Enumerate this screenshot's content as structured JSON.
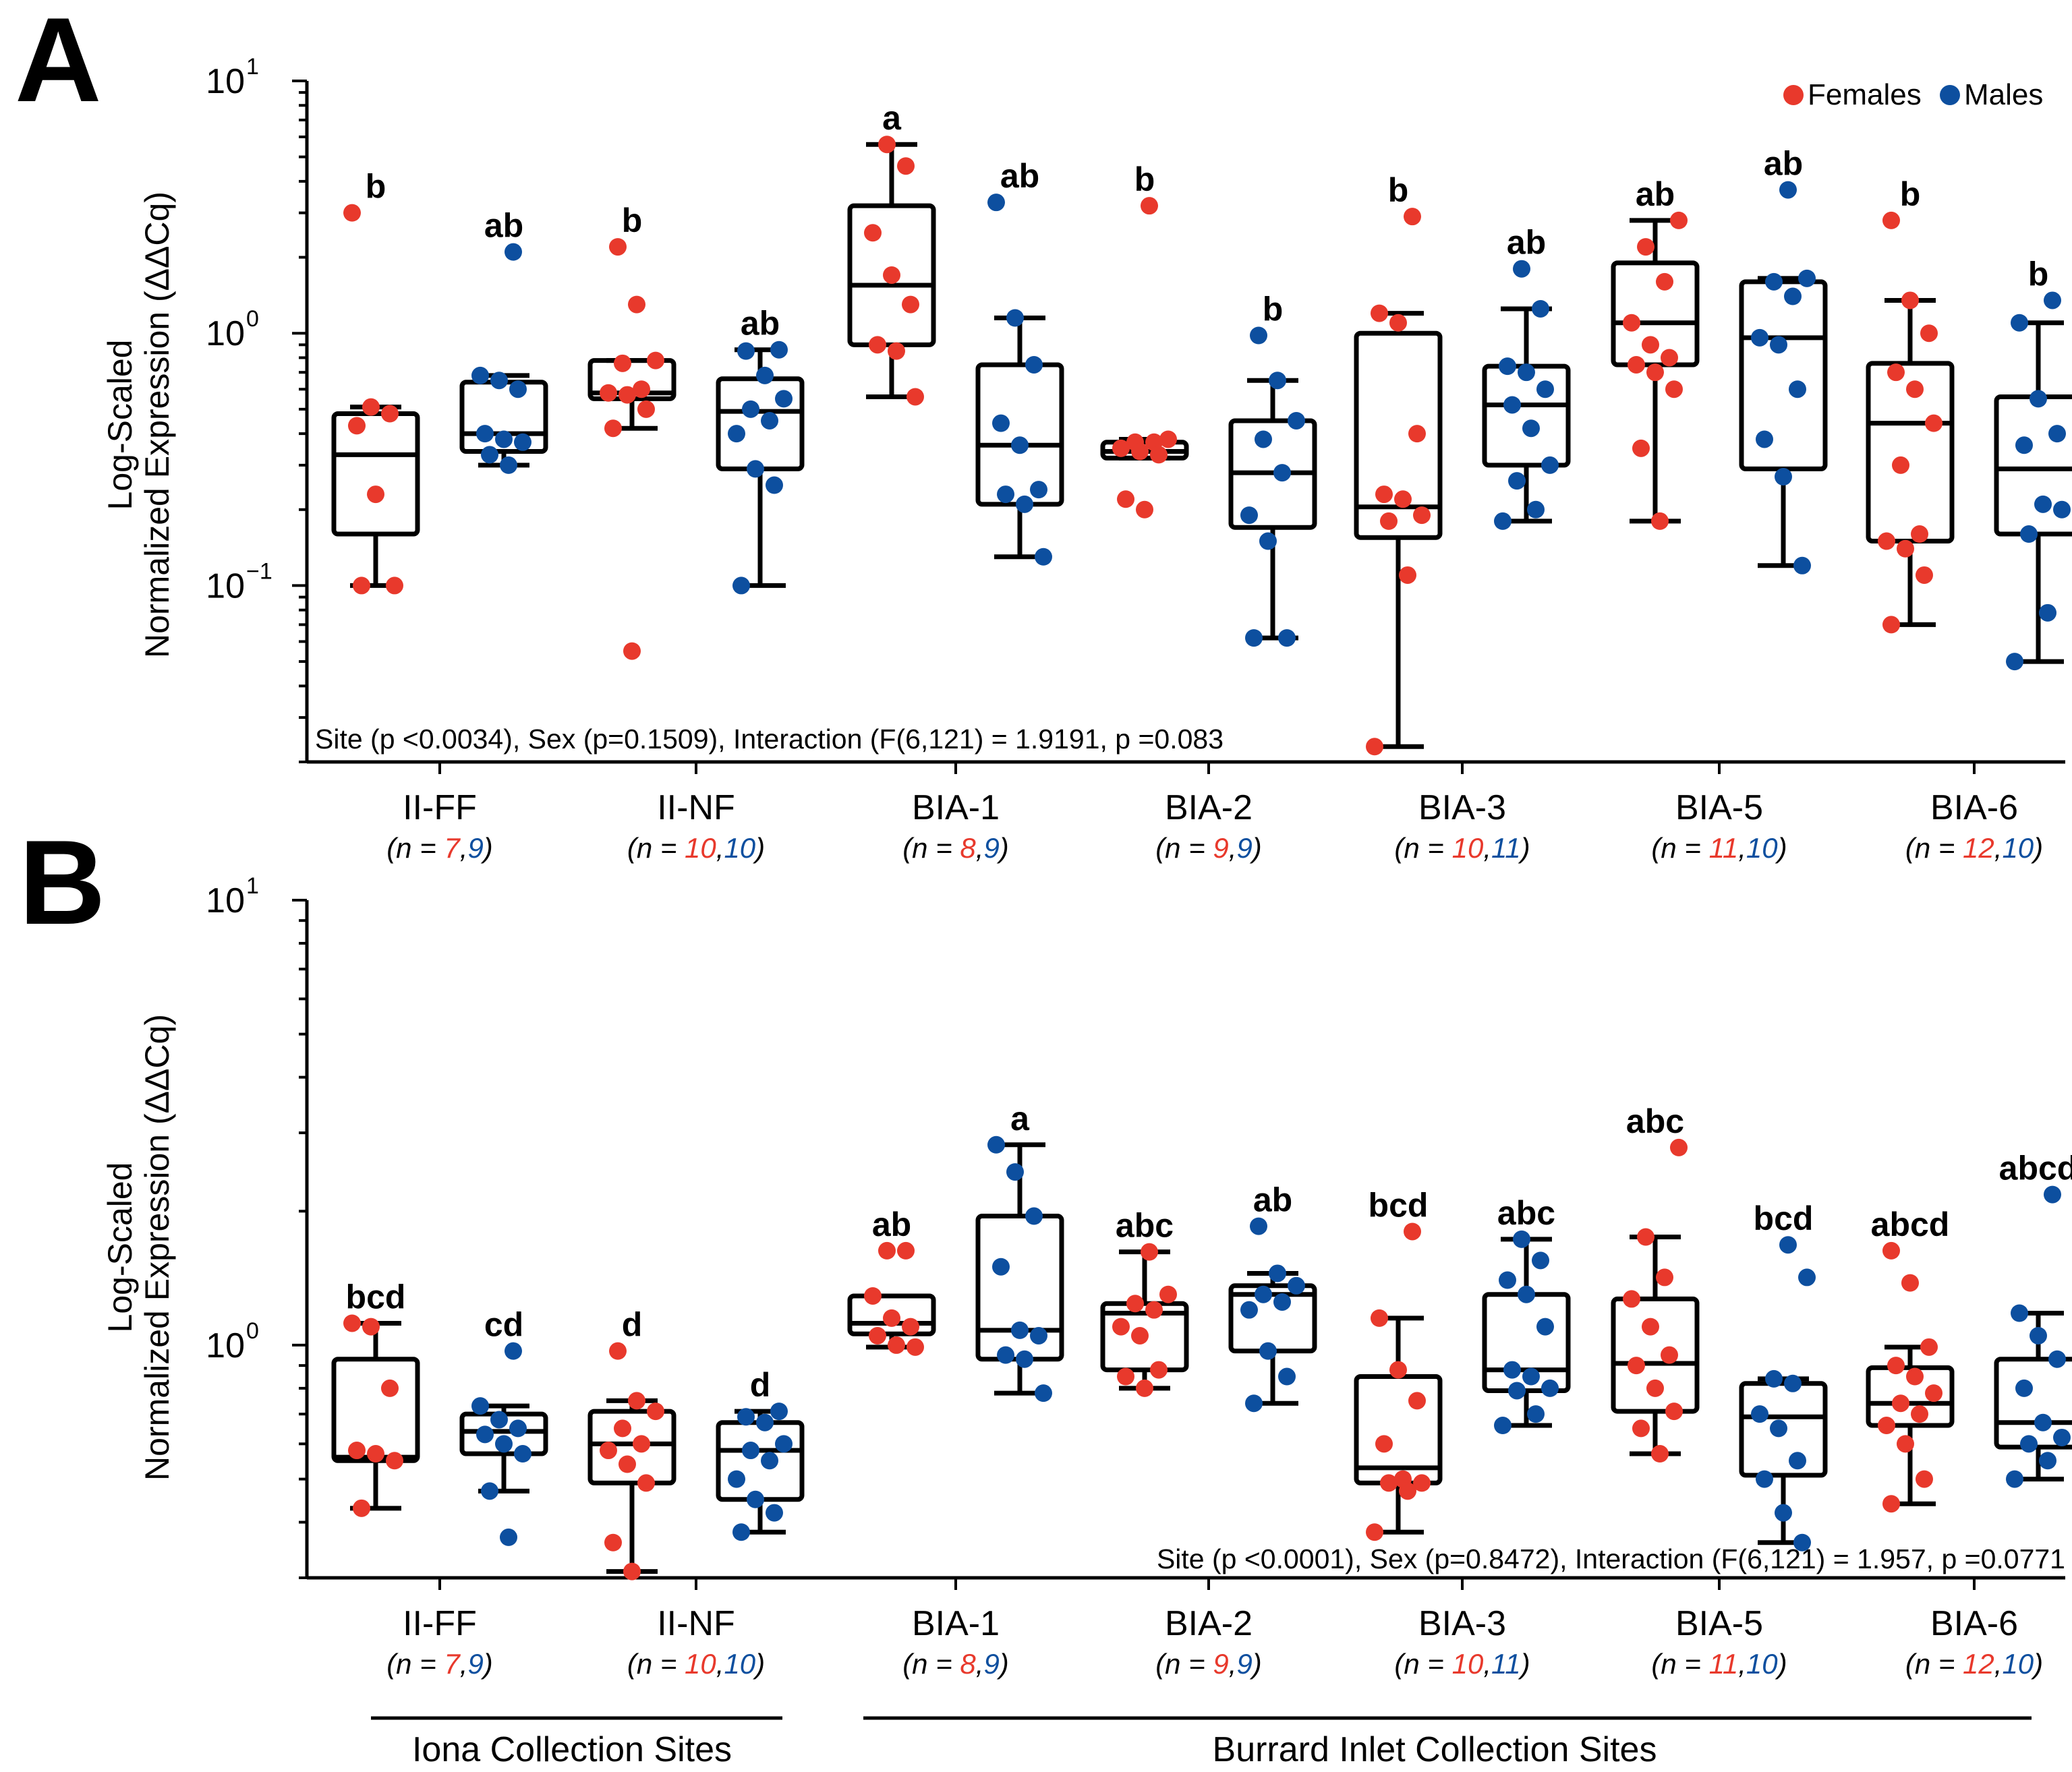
{
  "chart_data": [
    {
      "panel": "A",
      "type": "box",
      "yscale": "log",
      "ylim": [
        0.02,
        10
      ],
      "ylabel": [
        "Log-Scaled",
        "Normalized Expression (ΔΔCq)"
      ],
      "yticks": [
        {
          "value": 10,
          "label": "10",
          "exp": "1"
        },
        {
          "value": 1,
          "label": "10",
          "exp": "0"
        },
        {
          "value": 0.1,
          "label": "10",
          "exp": "−1"
        }
      ],
      "stats": "Site (p <0.0034), Sex (p=0.1509), Interaction (F(6,121) = 1.9191, p =0.083",
      "stats_position": "bottom-left",
      "legend": [
        {
          "name": "Females",
          "color": "#e8392c"
        },
        {
          "name": "Males",
          "color": "#0d4f9f"
        }
      ],
      "groups": [
        {
          "site": "II-FF",
          "n_prefix": "(n = ",
          "n_f": "7",
          "n_sep": ",",
          "n_m": "9",
          "n_suffix": ")",
          "female": {
            "letter": "b",
            "box": {
              "min": 0.1,
              "q1": 0.16,
              "median": 0.33,
              "q3": 0.48,
              "max": 0.51
            },
            "points": [
              3.0,
              0.51,
              0.48,
              0.43,
              0.23,
              0.1,
              0.1
            ]
          },
          "male": {
            "letter": "ab",
            "box": {
              "min": 0.3,
              "q1": 0.34,
              "median": 0.4,
              "q3": 0.64,
              "max": 0.68
            },
            "points": [
              2.1,
              0.68,
              0.65,
              0.6,
              0.4,
              0.38,
              0.37,
              0.33,
              0.3
            ]
          }
        },
        {
          "site": "II-NF",
          "n_prefix": "(n = ",
          "n_f": "10",
          "n_sep": ",",
          "n_m": "10",
          "n_suffix": ")",
          "female": {
            "letter": "b",
            "box": {
              "min": 0.42,
              "q1": 0.55,
              "median": 0.58,
              "q3": 0.78,
              "max": 0.78
            },
            "points": [
              2.2,
              1.3,
              0.78,
              0.76,
              0.6,
              0.58,
              0.57,
              0.5,
              0.42,
              0.055
            ]
          },
          "male": {
            "letter": "ab",
            "box": {
              "min": 0.1,
              "q1": 0.29,
              "median": 0.49,
              "q3": 0.66,
              "max": 0.86
            },
            "points": [
              0.86,
              0.85,
              0.68,
              0.55,
              0.5,
              0.45,
              0.4,
              0.29,
              0.25,
              0.1
            ]
          }
        },
        {
          "site": "BIA-1",
          "n_prefix": "(n = ",
          "n_f": "8",
          "n_sep": ",",
          "n_m": "9",
          "n_suffix": ")",
          "female": {
            "letter": "a",
            "box": {
              "min": 0.56,
              "q1": 0.9,
              "median": 1.55,
              "q3": 3.2,
              "max": 5.6
            },
            "points": [
              5.6,
              4.6,
              2.5,
              1.7,
              1.3,
              0.9,
              0.85,
              0.56
            ]
          },
          "male": {
            "letter": "ab",
            "box": {
              "min": 0.13,
              "q1": 0.21,
              "median": 0.36,
              "q3": 0.75,
              "max": 1.15
            },
            "points": [
              3.3,
              1.15,
              0.75,
              0.44,
              0.36,
              0.24,
              0.23,
              0.21,
              0.13
            ]
          }
        },
        {
          "site": "BIA-2",
          "n_prefix": "(n = ",
          "n_f": "9",
          "n_sep": ",",
          "n_m": "9",
          "n_suffix": ")",
          "female": {
            "letter": "b",
            "box": {
              "min": 0.32,
              "q1": 0.32,
              "median": 0.34,
              "q3": 0.37,
              "max": 0.38
            },
            "points": [
              3.2,
              0.38,
              0.37,
              0.37,
              0.35,
              0.34,
              0.33,
              0.22,
              0.2
            ]
          },
          "male": {
            "letter": "b",
            "box": {
              "min": 0.062,
              "q1": 0.17,
              "median": 0.28,
              "q3": 0.45,
              "max": 0.65
            },
            "points": [
              0.98,
              0.65,
              0.45,
              0.38,
              0.28,
              0.19,
              0.15,
              0.062,
              0.062
            ]
          }
        },
        {
          "site": "BIA-3",
          "n_prefix": "(n = ",
          "n_f": "10",
          "n_sep": ",",
          "n_m": "11",
          "n_suffix": ")",
          "female": {
            "letter": "b",
            "box": {
              "min": 0.023,
              "q1": 0.155,
              "median": 0.205,
              "q3": 1.0,
              "max": 1.2
            },
            "points": [
              2.9,
              1.2,
              1.1,
              0.4,
              0.23,
              0.22,
              0.19,
              0.18,
              0.11,
              0.023
            ]
          },
          "male": {
            "letter": "ab",
            "box": {
              "min": 0.18,
              "q1": 0.3,
              "median": 0.52,
              "q3": 0.74,
              "max": 1.25
            },
            "points": [
              1.8,
              1.25,
              0.74,
              0.7,
              0.6,
              0.52,
              0.42,
              0.3,
              0.26,
              0.2,
              0.18
            ]
          }
        },
        {
          "site": "BIA-5",
          "n_prefix": "(n = ",
          "n_f": "11",
          "n_sep": ",",
          "n_m": "10",
          "n_suffix": ")",
          "female": {
            "letter": "ab",
            "box": {
              "min": 0.18,
              "q1": 0.75,
              "median": 1.1,
              "q3": 1.9,
              "max": 2.8
            },
            "points": [
              2.8,
              2.2,
              1.6,
              1.1,
              0.9,
              0.8,
              0.75,
              0.7,
              0.6,
              0.35,
              0.18
            ]
          },
          "male": {
            "letter": "ab",
            "box": {
              "min": 0.12,
              "q1": 0.29,
              "median": 0.96,
              "q3": 1.6,
              "max": 1.65
            },
            "points": [
              3.7,
              1.65,
              1.6,
              1.4,
              0.96,
              0.9,
              0.6,
              0.38,
              0.27,
              0.12
            ]
          }
        },
        {
          "site": "BIA-6",
          "n_prefix": "(n = ",
          "n_f": "12",
          "n_sep": ",",
          "n_m": "10",
          "n_suffix": ")",
          "female": {
            "letter": "b",
            "box": {
              "min": 0.07,
              "q1": 0.15,
              "median": 0.44,
              "q3": 0.76,
              "max": 1.35
            },
            "points": [
              2.8,
              1.35,
              1.0,
              0.7,
              0.6,
              0.44,
              0.3,
              0.16,
              0.15,
              0.14,
              0.11,
              0.07
            ]
          },
          "male": {
            "letter": "b",
            "box": {
              "min": 0.05,
              "q1": 0.16,
              "median": 0.29,
              "q3": 0.56,
              "max": 1.1
            },
            "points": [
              1.35,
              1.1,
              0.55,
              0.4,
              0.36,
              0.21,
              0.2,
              0.16,
              0.078,
              0.05
            ]
          }
        }
      ]
    },
    {
      "panel": "B",
      "type": "box",
      "yscale": "log",
      "ylim": [
        0.3,
        10
      ],
      "ylabel": [
        "Log-Scaled",
        "Normalized Expression (ΔΔCq)"
      ],
      "yticks": [
        {
          "value": 10,
          "label": "10",
          "exp": "1"
        },
        {
          "value": 1,
          "label": "10",
          "exp": "0"
        }
      ],
      "stats": "Site (p <0.0001), Sex (p=0.8472), Interaction (F(6,121) = 1.957, p =0.0771",
      "stats_position": "bottom-right",
      "groups": [
        {
          "site": "II-FF",
          "n_prefix": "(n = ",
          "n_f": "7",
          "n_sep": ",",
          "n_m": "9",
          "n_suffix": ")",
          "female": {
            "letter": "bcd",
            "box": {
              "min": 0.43,
              "q1": 0.55,
              "median": 0.56,
              "q3": 0.93,
              "max": 1.12
            },
            "points": [
              1.12,
              1.1,
              0.8,
              0.58,
              0.57,
              0.55,
              0.43
            ]
          },
          "male": {
            "letter": "cd",
            "box": {
              "min": 0.47,
              "q1": 0.57,
              "median": 0.64,
              "q3": 0.7,
              "max": 0.73
            },
            "points": [
              0.97,
              0.73,
              0.68,
              0.65,
              0.63,
              0.6,
              0.57,
              0.47,
              0.37
            ]
          }
        },
        {
          "site": "II-NF",
          "n_prefix": "(n = ",
          "n_f": "10",
          "n_sep": ",",
          "n_m": "10",
          "n_suffix": ")",
          "female": {
            "letter": "d",
            "box": {
              "min": 0.31,
              "q1": 0.49,
              "median": 0.6,
              "q3": 0.71,
              "max": 0.75
            },
            "points": [
              0.97,
              0.75,
              0.71,
              0.65,
              0.6,
              0.58,
              0.54,
              0.49,
              0.36,
              0.31
            ]
          },
          "male": {
            "letter": "d",
            "box": {
              "min": 0.38,
              "q1": 0.45,
              "median": 0.58,
              "q3": 0.67,
              "max": 0.71
            },
            "points": [
              0.71,
              0.69,
              0.67,
              0.6,
              0.58,
              0.55,
              0.5,
              0.45,
              0.42,
              0.38
            ]
          }
        },
        {
          "site": "BIA-1",
          "n_prefix": "(n = ",
          "n_f": "8",
          "n_sep": ",",
          "n_m": "9",
          "n_suffix": ")",
          "female": {
            "letter": "ab",
            "box": {
              "min": 0.99,
              "q1": 1.06,
              "median": 1.12,
              "q3": 1.29,
              "max": 1.29
            },
            "points": [
              1.63,
              1.63,
              1.29,
              1.15,
              1.1,
              1.05,
              1.0,
              0.99
            ]
          },
          "male": {
            "letter": "a",
            "box": {
              "min": 0.78,
              "q1": 0.93,
              "median": 1.08,
              "q3": 1.95,
              "max": 2.82
            },
            "points": [
              2.82,
              2.45,
              1.95,
              1.5,
              1.08,
              1.05,
              0.95,
              0.93,
              0.78
            ]
          }
        },
        {
          "site": "BIA-2",
          "n_prefix": "(n = ",
          "n_f": "9",
          "n_sep": ",",
          "n_m": "9",
          "n_suffix": ")",
          "female": {
            "letter": "abc",
            "box": {
              "min": 0.8,
              "q1": 0.88,
              "median": 1.18,
              "q3": 1.24,
              "max": 1.62
            },
            "points": [
              1.62,
              1.3,
              1.24,
              1.2,
              1.1,
              1.05,
              0.88,
              0.85,
              0.8
            ]
          },
          "male": {
            "letter": "ab",
            "box": {
              "min": 0.74,
              "q1": 0.97,
              "median": 1.3,
              "q3": 1.36,
              "max": 1.45
            },
            "points": [
              1.85,
              1.45,
              1.36,
              1.3,
              1.25,
              1.2,
              0.97,
              0.85,
              0.74
            ]
          }
        },
        {
          "site": "BIA-3",
          "n_prefix": "(n = ",
          "n_f": "10",
          "n_sep": ",",
          "n_m": "11",
          "n_suffix": ")",
          "female": {
            "letter": "bcd",
            "box": {
              "min": 0.38,
              "q1": 0.49,
              "median": 0.53,
              "q3": 0.85,
              "max": 1.15
            },
            "points": [
              1.8,
              1.15,
              0.88,
              0.75,
              0.6,
              0.5,
              0.49,
              0.49,
              0.47,
              0.38
            ]
          },
          "male": {
            "letter": "abc",
            "box": {
              "min": 0.66,
              "q1": 0.79,
              "median": 0.88,
              "q3": 1.3,
              "max": 1.73
            },
            "points": [
              1.73,
              1.55,
              1.4,
              1.3,
              1.1,
              0.88,
              0.85,
              0.8,
              0.79,
              0.7,
              0.66
            ]
          }
        },
        {
          "site": "BIA-5",
          "n_prefix": "(n = ",
          "n_f": "11",
          "n_sep": ",",
          "n_m": "10",
          "n_suffix": ")",
          "female": {
            "letter": "abc",
            "box": {
              "min": 0.57,
              "q1": 0.71,
              "median": 0.91,
              "q3": 1.27,
              "max": 1.75
            },
            "points": [
              2.78,
              1.75,
              1.42,
              1.27,
              1.1,
              0.95,
              0.9,
              0.8,
              0.71,
              0.65,
              0.57
            ]
          },
          "male": {
            "letter": "bcd",
            "box": {
              "min": 0.36,
              "q1": 0.51,
              "median": 0.69,
              "q3": 0.82,
              "max": 0.84
            },
            "points": [
              1.68,
              1.42,
              0.84,
              0.82,
              0.7,
              0.65,
              0.55,
              0.5,
              0.42,
              0.36
            ]
          }
        },
        {
          "site": "BIA-6",
          "n_prefix": "(n = ",
          "n_f": "12",
          "n_sep": ",",
          "n_m": "10",
          "n_suffix": ")",
          "female": {
            "letter": "abcd",
            "box": {
              "min": 0.44,
              "q1": 0.66,
              "median": 0.74,
              "q3": 0.89,
              "max": 0.99
            },
            "points": [
              1.63,
              1.38,
              0.99,
              0.9,
              0.85,
              0.78,
              0.74,
              0.7,
              0.66,
              0.6,
              0.5,
              0.44
            ]
          },
          "male": {
            "letter": "abcd",
            "box": {
              "min": 0.5,
              "q1": 0.59,
              "median": 0.67,
              "q3": 0.93,
              "max": 1.18
            },
            "points": [
              2.18,
              1.18,
              1.05,
              0.93,
              0.8,
              0.67,
              0.62,
              0.6,
              0.55,
              0.5
            ]
          }
        }
      ]
    }
  ],
  "panel_labels": [
    "A",
    "B"
  ],
  "collection_groups": [
    {
      "label": "Iona Collection Sites",
      "sites": [
        "II-FF",
        "II-NF"
      ]
    },
    {
      "label": "Burrard Inlet Collection Sites",
      "sites": [
        "BIA-1",
        "BIA-2",
        "BIA-3",
        "BIA-5",
        "BIA-6"
      ]
    }
  ],
  "colors": {
    "female": "#e8392c",
    "male": "#0d4f9f",
    "axis": "#000000"
  }
}
